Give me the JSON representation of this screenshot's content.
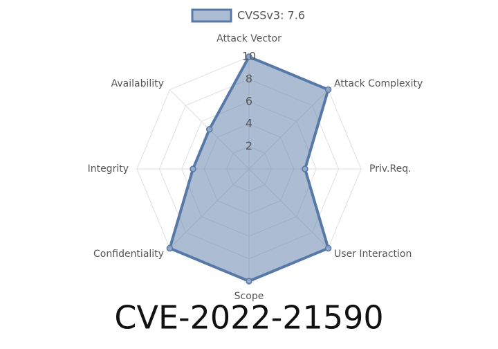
{
  "chart_data": {
    "type": "radar",
    "title": "CVE-2022-21590",
    "categories": [
      "Attack Vector",
      "Attack Complexity",
      "Priv.Req.",
      "User Interaction",
      "Scope",
      "Confidentiality",
      "Integrity",
      "Availability"
    ],
    "series": [
      {
        "name": "CVSSv3: 7.6",
        "color": "#5779a8",
        "values": [
          10,
          10,
          5,
          10,
          10,
          10,
          5,
          5
        ]
      }
    ],
    "rlim": [
      0,
      10
    ],
    "rticks": [
      2,
      4,
      6,
      8,
      10
    ],
    "grid": true,
    "legend": "top"
  }
}
